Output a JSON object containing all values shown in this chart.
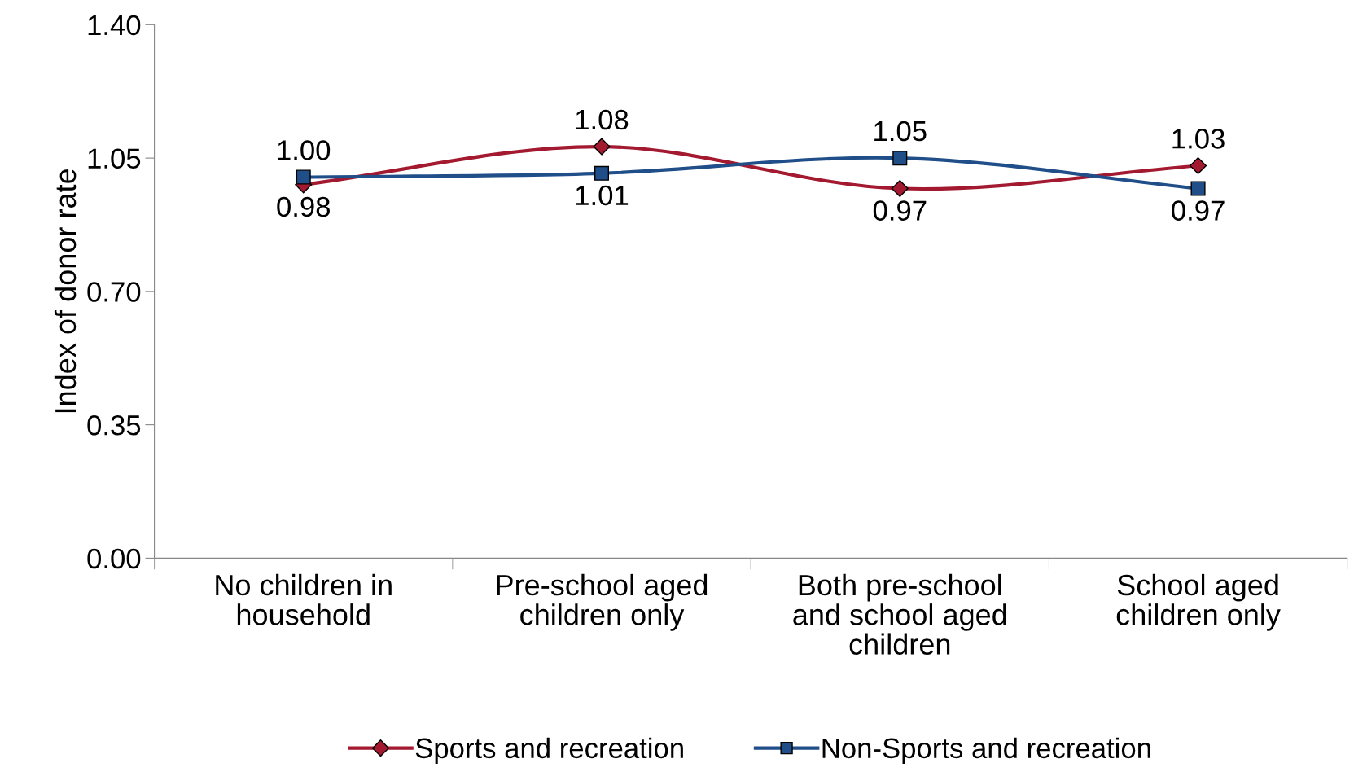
{
  "chart_data": {
    "type": "line",
    "ylabel": "Index of donor rate",
    "categories": [
      "No children in\nhousehold",
      "Pre-school aged\nchildren only",
      "Both pre-school\nand school aged\nchildren",
      "School aged\nchildren only"
    ],
    "series": [
      {
        "name": "Sports and recreation",
        "color": "#a3192f",
        "marker": "diamond",
        "values": [
          0.98,
          1.08,
          0.97,
          1.03
        ],
        "value_labels": [
          "0.98",
          "1.08",
          "0.97",
          "1.03"
        ]
      },
      {
        "name": "Non-Sports and recreation",
        "color": "#1f4e89",
        "marker": "square",
        "values": [
          1.0,
          1.01,
          1.05,
          0.97
        ],
        "value_labels": [
          "1.00",
          "1.01",
          "1.05",
          "0.97"
        ]
      }
    ],
    "ylim": [
      0,
      1.4
    ],
    "yticks": [
      {
        "value": 0,
        "label": "0.00"
      },
      {
        "value": 0.35,
        "label": "0.35"
      },
      {
        "value": 0.7,
        "label": "0.70"
      },
      {
        "value": 1.05,
        "label": "1.05"
      },
      {
        "value": 1.4,
        "label": "1.40"
      }
    ],
    "grid": false,
    "legend": "bottom",
    "line_style": "solid"
  }
}
